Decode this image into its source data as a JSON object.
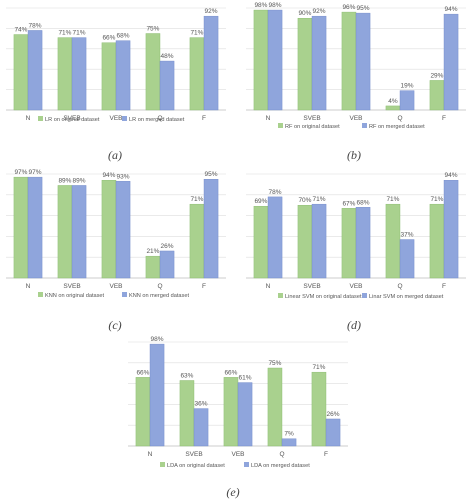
{
  "colors": {
    "green": "#a9d18e",
    "blue": "#8fa5dc",
    "grid": "#dddddd",
    "text": "#555555"
  },
  "captions": [
    "(a)",
    "(b)",
    "(c)",
    "(d)",
    "(e)"
  ],
  "chart_data": [
    {
      "type": "bar",
      "categories": [
        "N",
        "SVEB",
        "VEB",
        "Q",
        "F"
      ],
      "series": [
        {
          "name": "LR on original dataset",
          "values": [
            74,
            71,
            66,
            75,
            71
          ],
          "labels": [
            "74%",
            "71%",
            "66%",
            "75%",
            "71%"
          ]
        },
        {
          "name": "LR on merged dataset",
          "values": [
            78,
            71,
            68,
            48,
            92
          ],
          "labels": [
            "78%",
            "71%",
            "68%",
            "48%",
            "92%"
          ]
        }
      ],
      "ylim": [
        0,
        100
      ],
      "grid": true,
      "legend": "bottom"
    },
    {
      "type": "bar",
      "categories": [
        "N",
        "SVEB",
        "VEB",
        "Q",
        "F"
      ],
      "series": [
        {
          "name": "RF on original dataset",
          "values": [
            98,
            90,
            96,
            4,
            29
          ],
          "labels": [
            "98%",
            "90%",
            "96%",
            "4%",
            "29%"
          ]
        },
        {
          "name": "RF on merged dataset",
          "values": [
            98,
            92,
            95,
            19,
            94
          ],
          "labels": [
            "98%",
            "92%",
            "95%",
            "19%",
            "94%"
          ]
        }
      ],
      "ylim": [
        0,
        100
      ],
      "grid": true,
      "legend": "bottom"
    },
    {
      "type": "bar",
      "categories": [
        "N",
        "SVEB",
        "VEB",
        "Q",
        "F"
      ],
      "series": [
        {
          "name": "KNN on original dataset",
          "values": [
            97,
            89,
            94,
            21,
            71
          ],
          "labels": [
            "97%",
            "89%",
            "94%",
            "21%",
            "71%"
          ]
        },
        {
          "name": "KNN on merged dataset",
          "values": [
            97,
            89,
            93,
            26,
            95
          ],
          "labels": [
            "97%",
            "89%",
            "93%",
            "26%",
            "95%"
          ]
        }
      ],
      "ylim": [
        0,
        100
      ],
      "grid": true,
      "legend": "bottom"
    },
    {
      "type": "bar",
      "categories": [
        "N",
        "SVEB",
        "VEB",
        "Q",
        "F"
      ],
      "series": [
        {
          "name": "Linear SVM on original dataset",
          "values": [
            69,
            70,
            67,
            71,
            71
          ],
          "labels": [
            "69%",
            "70%",
            "67%",
            "71%",
            "71%"
          ]
        },
        {
          "name": "Linar SVM on merged dataset",
          "values": [
            78,
            71,
            68,
            37,
            94
          ],
          "labels": [
            "78%",
            "71%",
            "68%",
            "37%",
            "94%"
          ]
        }
      ],
      "ylim": [
        0,
        100
      ],
      "grid": true,
      "legend": "bottom"
    },
    {
      "type": "bar",
      "categories": [
        "N",
        "SVEB",
        "VEB",
        "Q",
        "F"
      ],
      "series": [
        {
          "name": "LDA on original dataset",
          "values": [
            66,
            63,
            66,
            75,
            71
          ],
          "labels": [
            "66%",
            "63%",
            "66%",
            "75%",
            "71%"
          ]
        },
        {
          "name": "LDA on merged dataset",
          "values": [
            98,
            36,
            61,
            7,
            26
          ],
          "labels": [
            "98%",
            "36%",
            "61%",
            "7%",
            "26%"
          ]
        }
      ],
      "ylim": [
        0,
        100
      ],
      "grid": true,
      "legend": "bottom"
    }
  ]
}
